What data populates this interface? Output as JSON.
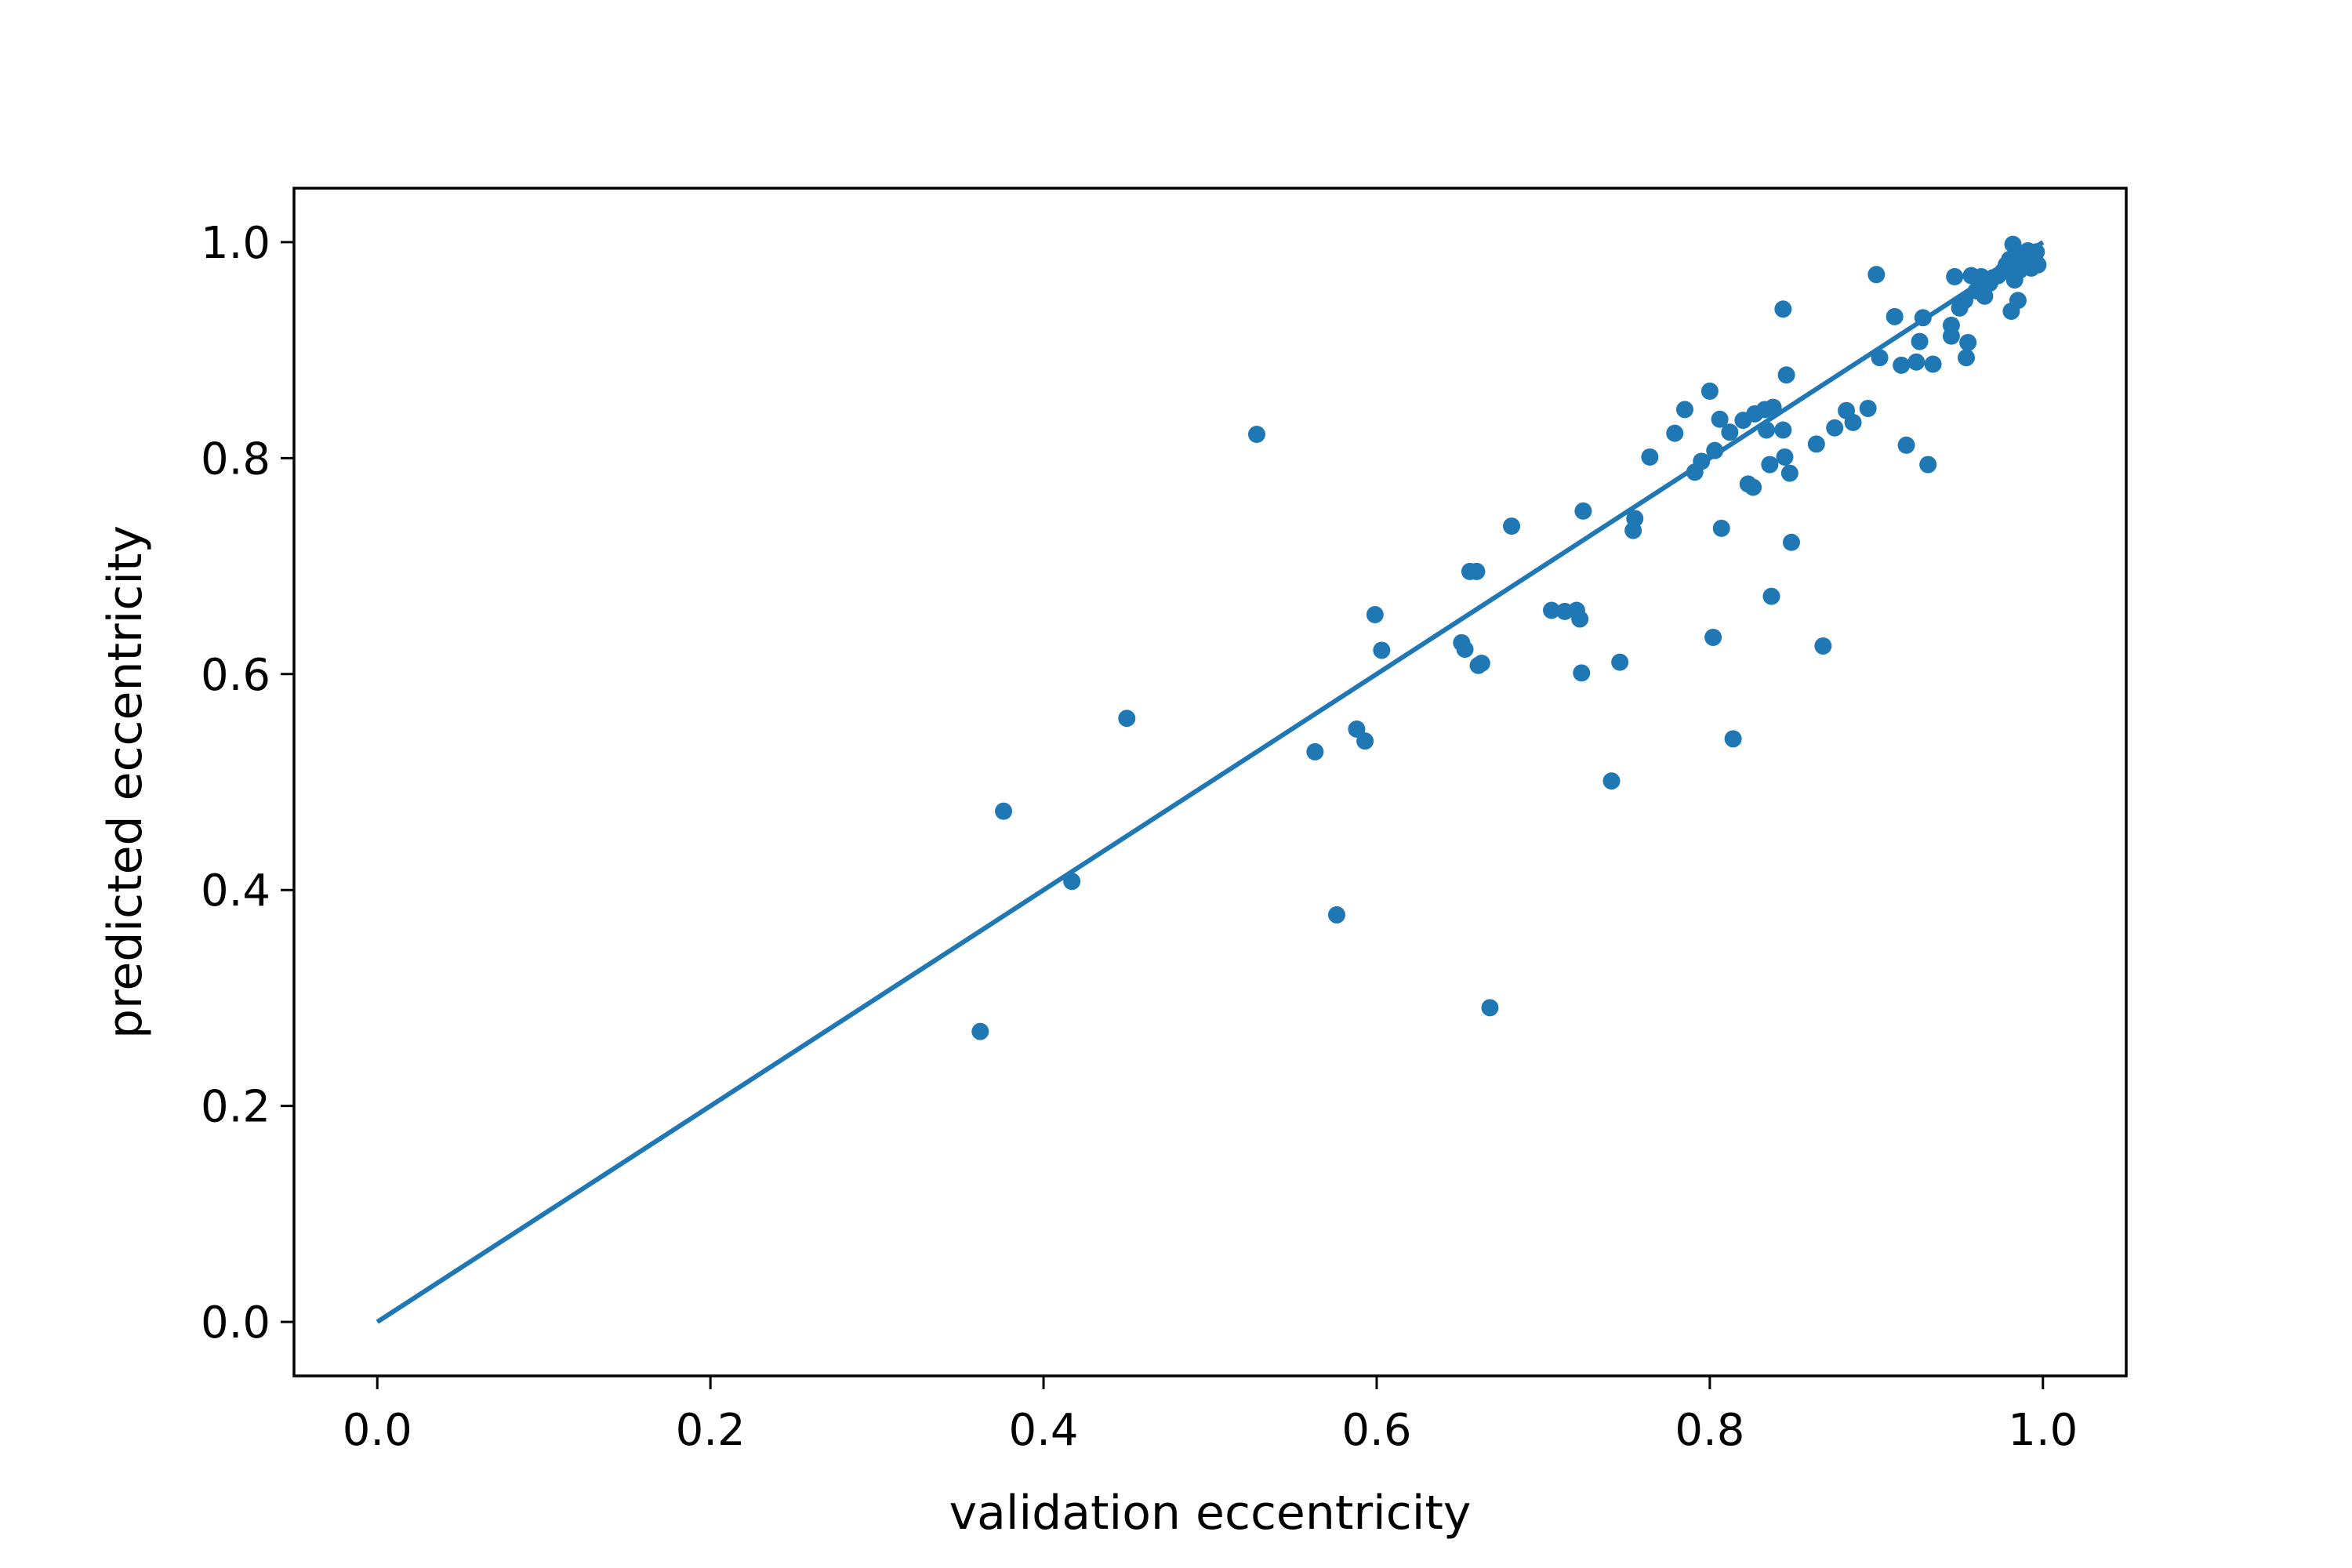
{
  "chart_data": {
    "type": "scatter",
    "title": "",
    "xlabel": "validation eccentricity",
    "ylabel": "predicted eccentricity",
    "xlim": [
      -0.05,
      1.05
    ],
    "ylim": [
      -0.05,
      1.05
    ],
    "xticks": [
      0.0,
      0.2,
      0.4,
      0.6,
      0.8,
      1.0
    ],
    "yticks": [
      0.0,
      0.2,
      0.4,
      0.6,
      0.8,
      1.0
    ],
    "xtick_labels": [
      "0.0",
      "0.2",
      "0.4",
      "0.6",
      "0.8",
      "1.0"
    ],
    "ytick_labels": [
      "0.0",
      "0.2",
      "0.4",
      "0.6",
      "0.8",
      "1.0"
    ],
    "grid": false,
    "legend": "none",
    "color": "#1f77b4",
    "reference_line": {
      "x": [
        0.0,
        1.0
      ],
      "y": [
        0.0,
        1.0
      ]
    },
    "points": [
      [
        0.362,
        0.269
      ],
      [
        0.376,
        0.473
      ],
      [
        0.417,
        0.408
      ],
      [
        0.45,
        0.559
      ],
      [
        0.528,
        0.822
      ],
      [
        0.563,
        0.528
      ],
      [
        0.576,
        0.377
      ],
      [
        0.588,
        0.549
      ],
      [
        0.593,
        0.538
      ],
      [
        0.599,
        0.655
      ],
      [
        0.603,
        0.622
      ],
      [
        0.651,
        0.629
      ],
      [
        0.653,
        0.623
      ],
      [
        0.656,
        0.695
      ],
      [
        0.66,
        0.695
      ],
      [
        0.661,
        0.608
      ],
      [
        0.663,
        0.61
      ],
      [
        0.668,
        0.291
      ],
      [
        0.681,
        0.737
      ],
      [
        0.705,
        0.659
      ],
      [
        0.713,
        0.658
      ],
      [
        0.72,
        0.659
      ],
      [
        0.722,
        0.651
      ],
      [
        0.723,
        0.601
      ],
      [
        0.724,
        0.751
      ],
      [
        0.741,
        0.501
      ],
      [
        0.746,
        0.611
      ],
      [
        0.754,
        0.733
      ],
      [
        0.755,
        0.744
      ],
      [
        0.764,
        0.801
      ],
      [
        0.779,
        0.823
      ],
      [
        0.785,
        0.845
      ],
      [
        0.791,
        0.787
      ],
      [
        0.795,
        0.797
      ],
      [
        0.8,
        0.862
      ],
      [
        0.802,
        0.634
      ],
      [
        0.803,
        0.807
      ],
      [
        0.806,
        0.836
      ],
      [
        0.807,
        0.735
      ],
      [
        0.812,
        0.824
      ],
      [
        0.814,
        0.54
      ],
      [
        0.82,
        0.835
      ],
      [
        0.823,
        0.776
      ],
      [
        0.826,
        0.773
      ],
      [
        0.827,
        0.841
      ],
      [
        0.833,
        0.845
      ],
      [
        0.834,
        0.826
      ],
      [
        0.836,
        0.794
      ],
      [
        0.837,
        0.672
      ],
      [
        0.838,
        0.847
      ],
      [
        0.844,
        0.938
      ],
      [
        0.844,
        0.826
      ],
      [
        0.845,
        0.801
      ],
      [
        0.846,
        0.877
      ],
      [
        0.848,
        0.786
      ],
      [
        0.849,
        0.722
      ],
      [
        0.864,
        0.813
      ],
      [
        0.868,
        0.626
      ],
      [
        0.875,
        0.828
      ],
      [
        0.882,
        0.844
      ],
      [
        0.886,
        0.833
      ],
      [
        0.895,
        0.846
      ],
      [
        0.9,
        0.97
      ],
      [
        0.902,
        0.893
      ],
      [
        0.911,
        0.931
      ],
      [
        0.915,
        0.886
      ],
      [
        0.918,
        0.812
      ],
      [
        0.924,
        0.889
      ],
      [
        0.926,
        0.908
      ],
      [
        0.928,
        0.93
      ],
      [
        0.931,
        0.794
      ],
      [
        0.934,
        0.887
      ],
      [
        0.945,
        0.913
      ],
      [
        0.945,
        0.923
      ],
      [
        0.947,
        0.968
      ],
      [
        0.95,
        0.939
      ],
      [
        0.953,
        0.946
      ],
      [
        0.954,
        0.893
      ],
      [
        0.955,
        0.907
      ],
      [
        0.957,
        0.969
      ],
      [
        0.96,
        0.955
      ],
      [
        0.963,
        0.968
      ],
      [
        0.965,
        0.95
      ],
      [
        0.968,
        0.962
      ],
      [
        0.97,
        0.967
      ],
      [
        0.973,
        0.969
      ],
      [
        0.976,
        0.973
      ],
      [
        0.978,
        0.979
      ],
      [
        0.98,
        0.984
      ],
      [
        0.981,
        0.936
      ],
      [
        0.982,
        0.998
      ],
      [
        0.983,
        0.965
      ],
      [
        0.984,
        0.982
      ],
      [
        0.985,
        0.946
      ],
      [
        0.986,
        0.974
      ],
      [
        0.988,
        0.988
      ],
      [
        0.99,
        0.981
      ],
      [
        0.991,
        0.992
      ],
      [
        0.993,
        0.976
      ],
      [
        0.995,
        0.985
      ],
      [
        0.996,
        0.991
      ],
      [
        0.997,
        0.979
      ]
    ]
  }
}
